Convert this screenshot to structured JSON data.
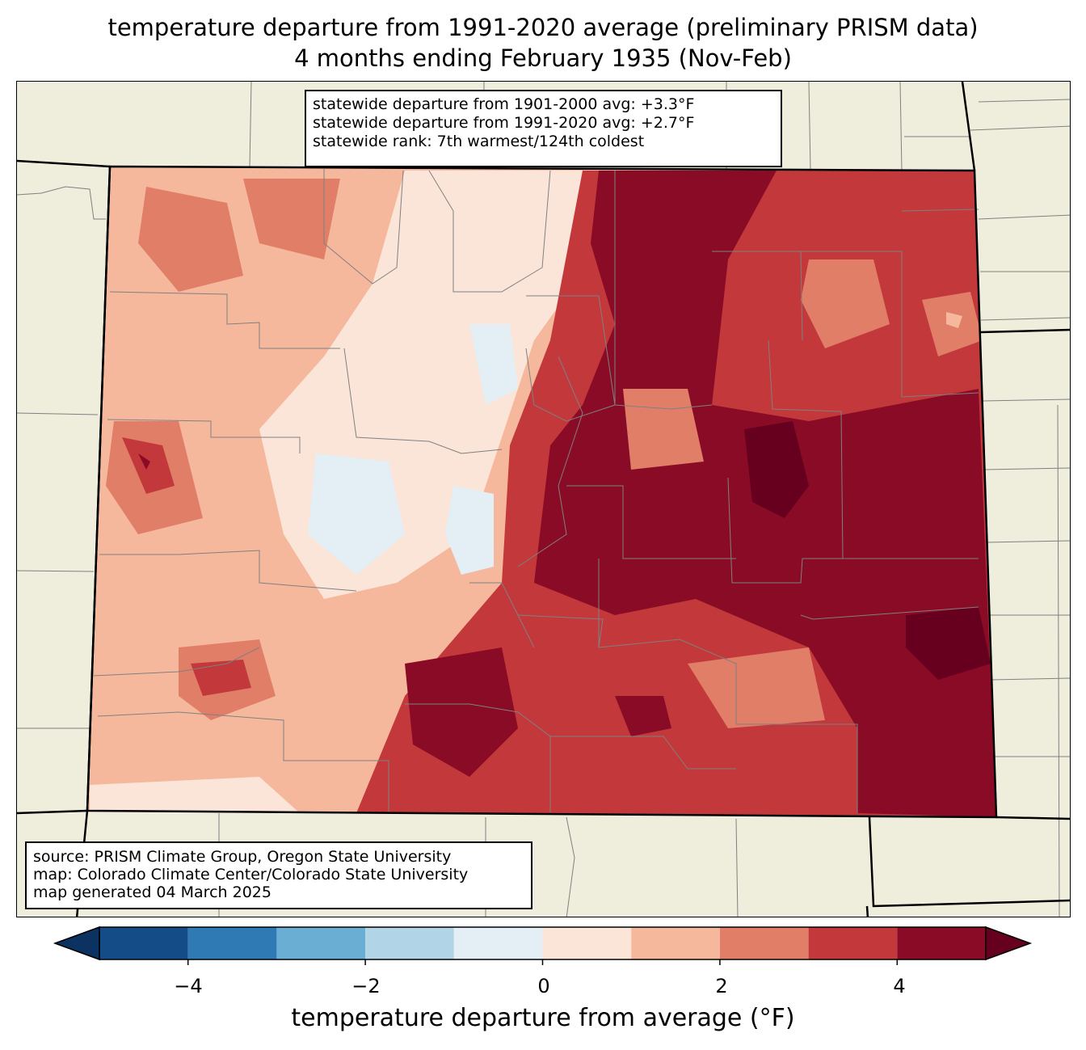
{
  "title": {
    "line1": "temperature departure from 1991-2020 average (preliminary PRISM data)",
    "line2": "4 months ending February 1935 (Nov-Feb)"
  },
  "stats": {
    "line1": "statewide departure from 1901-2000 avg: +3.3°F",
    "line2": "statewide departure from 1991-2020 avg: +2.7°F",
    "line3": "statewide rank: 7th warmest/124th coldest"
  },
  "source": {
    "line1": "source: PRISM Climate Group, Oregon State University",
    "line2": "map: Colorado Climate Center/Colorado State University",
    "line3": "map generated 04 March 2025"
  },
  "colorbar": {
    "label": "temperature departure from average (°F)",
    "ticks": [
      "−4",
      "−2",
      "0",
      "2",
      "4"
    ],
    "bins": [
      {
        "range": [
          -5,
          -4
        ],
        "color": "#144c87"
      },
      {
        "range": [
          -4,
          -3
        ],
        "color": "#2f79b5"
      },
      {
        "range": [
          -3,
          -2
        ],
        "color": "#6aaed3"
      },
      {
        "range": [
          -2,
          -1
        ],
        "color": "#b1d5e7"
      },
      {
        "range": [
          -1,
          0
        ],
        "color": "#e4eef5"
      },
      {
        "range": [
          0,
          1
        ],
        "color": "#fbe5d8"
      },
      {
        "range": [
          1,
          2
        ],
        "color": "#f6b89c"
      },
      {
        "range": [
          2,
          3
        ],
        "color": "#e17e68"
      },
      {
        "range": [
          3,
          4
        ],
        "color": "#c2383b"
      },
      {
        "range": [
          4,
          5
        ],
        "color": "#8a0b25"
      }
    ],
    "under_color": "#0c3261",
    "over_color": "#67001f"
  },
  "colors": {
    "background": "#efeddb",
    "county_lines": "#808080"
  }
}
